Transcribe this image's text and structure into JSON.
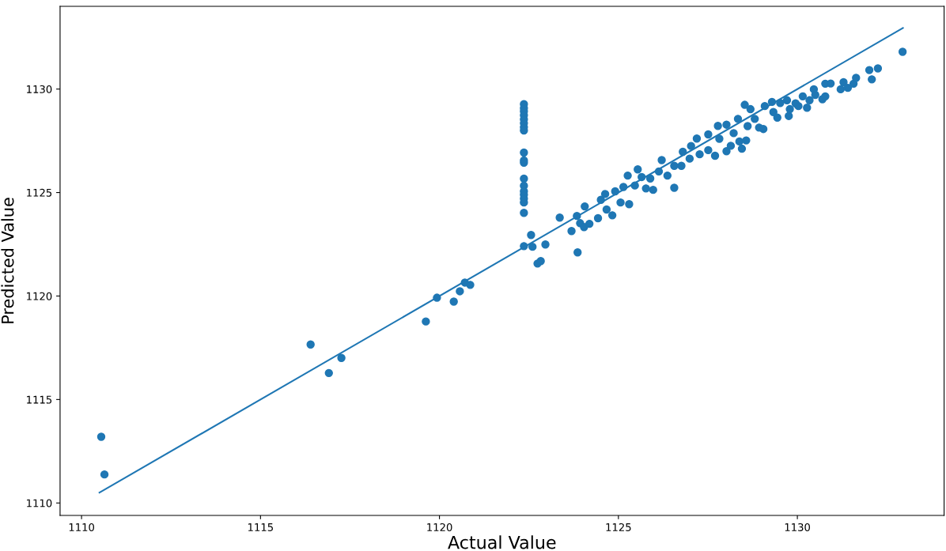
{
  "chart_data": {
    "type": "scatter",
    "xlabel": "Actual Value",
    "ylabel": "Predicted Value",
    "xlim": [
      1109.4,
      1134.1
    ],
    "ylim": [
      1109.4,
      1134.0
    ],
    "xticks": [
      1110,
      1115,
      1120,
      1125,
      1130
    ],
    "yticks": [
      1110,
      1115,
      1120,
      1125,
      1130
    ],
    "grid": false,
    "series": [
      {
        "color": "#1f77b4",
        "marker": "circle",
        "x": [
          1110.55,
          1110.64,
          1116.4,
          1116.91,
          1117.26,
          1119.62,
          1119.93,
          1120.4,
          1120.57,
          1120.71,
          1120.86,
          1122.36,
          1122.36,
          1122.36,
          1122.36,
          1122.36,
          1122.36,
          1122.36,
          1122.36,
          1122.36,
          1122.36,
          1122.36,
          1122.36,
          1122.36,
          1122.36,
          1122.36,
          1122.36,
          1122.36,
          1122.36,
          1122.36,
          1122.56,
          1122.6,
          1122.74,
          1122.83,
          1122.96,
          1123.36,
          1123.69,
          1123.84,
          1123.86,
          1123.93,
          1124.06,
          1124.04,
          1124.51,
          1124.67,
          1124.83,
          1124.19,
          1124.43,
          1124.63,
          1124.91,
          1125.14,
          1125.06,
          1125.3,
          1125.26,
          1125.54,
          1125.46,
          1125.65,
          1125.77,
          1125.89,
          1125.97,
          1126.13,
          1126.21,
          1126.37,
          1126.56,
          1126.56,
          1126.8,
          1126.76,
          1127.03,
          1126.99,
          1127.19,
          1127.27,
          1127.51,
          1127.51,
          1127.7,
          1127.78,
          1127.82,
          1128.02,
          1128.02,
          1128.14,
          1128.22,
          1128.38,
          1128.45,
          1128.57,
          1128.34,
          1128.53,
          1128.61,
          1128.69,
          1128.81,
          1128.93,
          1129.05,
          1129.09,
          1129.29,
          1129.33,
          1129.44,
          1129.52,
          1129.71,
          1129.76,
          1129.79,
          1129.95,
          1130.03,
          1130.15,
          1130.27,
          1130.34,
          1130.46,
          1130.5,
          1130.7,
          1130.78,
          1130.78,
          1130.93,
          1131.21,
          1131.29,
          1131.41,
          1131.57,
          1131.64,
          1132.08,
          1132.01,
          1132.25,
          1132.94
        ],
        "values": [
          1113.2,
          1111.38,
          1117.66,
          1116.28,
          1117.01,
          1118.77,
          1119.92,
          1119.73,
          1120.23,
          1120.65,
          1120.54,
          1129.27,
          1129.08,
          1128.93,
          1128.74,
          1128.54,
          1128.35,
          1128.16,
          1128.0,
          1126.93,
          1126.55,
          1126.44,
          1125.67,
          1125.33,
          1125.06,
          1124.9,
          1124.71,
          1124.52,
          1124.02,
          1122.41,
          1122.95,
          1122.38,
          1121.57,
          1121.69,
          1122.49,
          1123.79,
          1123.14,
          1123.87,
          1122.11,
          1123.52,
          1124.33,
          1123.33,
          1124.65,
          1124.18,
          1123.9,
          1123.49,
          1123.76,
          1124.93,
          1125.06,
          1125.27,
          1124.52,
          1124.44,
          1125.82,
          1126.12,
          1125.34,
          1125.75,
          1125.2,
          1125.68,
          1125.13,
          1126.02,
          1126.57,
          1125.82,
          1125.23,
          1126.29,
          1126.97,
          1126.29,
          1127.25,
          1126.64,
          1127.61,
          1126.85,
          1127.81,
          1127.05,
          1126.78,
          1128.22,
          1127.6,
          1128.28,
          1127.0,
          1127.26,
          1127.87,
          1127.47,
          1127.12,
          1127.52,
          1128.56,
          1129.24,
          1128.21,
          1129.03,
          1128.56,
          1128.14,
          1128.07,
          1129.18,
          1129.38,
          1128.89,
          1128.62,
          1129.33,
          1129.46,
          1128.7,
          1129.03,
          1129.31,
          1129.18,
          1129.65,
          1129.1,
          1129.46,
          1129.99,
          1129.72,
          1129.51,
          1129.65,
          1130.26,
          1130.27,
          1129.99,
          1130.33,
          1130.06,
          1130.26,
          1130.54,
          1130.47,
          1130.92,
          1131.0,
          1131.8
        ]
      },
      {
        "type": "line",
        "color": "#1f77b4",
        "x": [
          1110.5,
          1132.95
        ],
        "values": [
          1110.5,
          1132.95
        ]
      }
    ]
  }
}
